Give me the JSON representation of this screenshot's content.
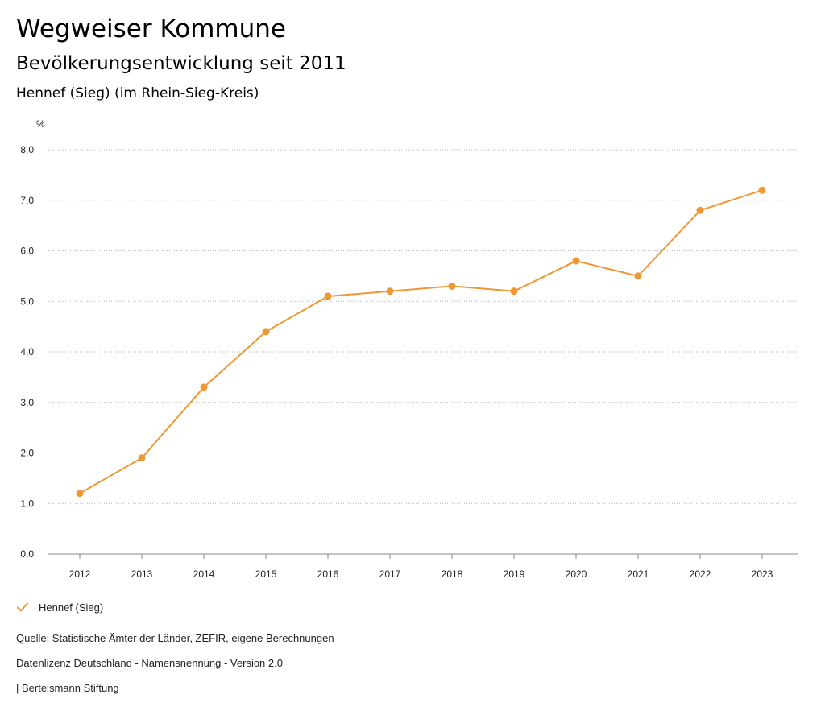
{
  "header": {
    "title": "Wegweiser Kommune",
    "subtitle": "Bevölkerungsentwicklung seit 2011",
    "region": "Hennef (Sieg) (im Rhein-Sieg-Kreis)"
  },
  "chart_data": {
    "type": "line",
    "title": "Bevölkerungsentwicklung seit 2011",
    "xlabel": "",
    "ylabel": "%",
    "categories": [
      "2012",
      "2013",
      "2014",
      "2015",
      "2016",
      "2017",
      "2018",
      "2019",
      "2020",
      "2021",
      "2022",
      "2023"
    ],
    "series": [
      {
        "name": "Hennef (Sieg)",
        "color": "#ee9835",
        "values": [
          1.2,
          1.9,
          3.3,
          4.4,
          5.1,
          5.2,
          5.3,
          5.2,
          5.8,
          5.5,
          6.8,
          7.2
        ]
      }
    ],
    "ylim": [
      0,
      8
    ],
    "yticks": [
      "0,0",
      "1,0",
      "2,0",
      "3,0",
      "4,0",
      "5,0",
      "6,0",
      "7,0",
      "8,0"
    ],
    "grid": true,
    "legend_position": "bottom-left"
  },
  "legend": {
    "label": "Hennef (Sieg)"
  },
  "footer": {
    "source": "Quelle: Statistische Ämter der Länder, ZEFIR, eigene Berechnungen",
    "license": "Datenlizenz Deutschland - Namensnennung - Version 2.0",
    "publisher": "| Bertelsmann Stiftung"
  }
}
